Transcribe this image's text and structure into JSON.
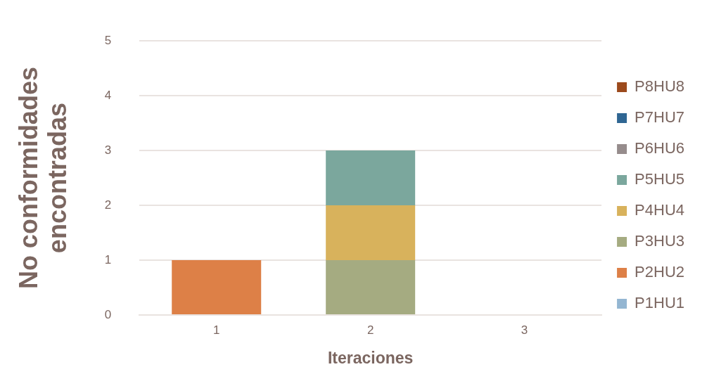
{
  "chart_data": {
    "type": "bar",
    "stacked": true,
    "xlabel": "Iteraciones",
    "ylabel": "No conformidades encontradas",
    "categories": [
      "1",
      "2",
      "3"
    ],
    "series": [
      {
        "name": "P1HU1",
        "color": "#94b6d2",
        "values": [
          0,
          0,
          0
        ]
      },
      {
        "name": "P2HU2",
        "color": "#dd8047",
        "values": [
          1,
          0,
          0
        ]
      },
      {
        "name": "P3HU3",
        "color": "#a5ab81",
        "values": [
          0,
          1,
          0
        ]
      },
      {
        "name": "P4HU4",
        "color": "#d8b25c",
        "values": [
          0,
          1,
          0
        ]
      },
      {
        "name": "P5HU5",
        "color": "#7ba79d",
        "values": [
          0,
          1,
          0
        ]
      },
      {
        "name": "P6HU6",
        "color": "#968c8c",
        "values": [
          0,
          0,
          0
        ]
      },
      {
        "name": "P7HU7",
        "color": "#2f6693",
        "values": [
          0,
          0,
          0
        ]
      },
      {
        "name": "P8HU8",
        "color": "#9c4a1c",
        "values": [
          0,
          0,
          0
        ]
      }
    ],
    "ylim": [
      0,
      5
    ],
    "yticks": [
      0,
      1,
      2,
      3,
      4,
      5
    ],
    "grid": "y",
    "legend": "right"
  }
}
